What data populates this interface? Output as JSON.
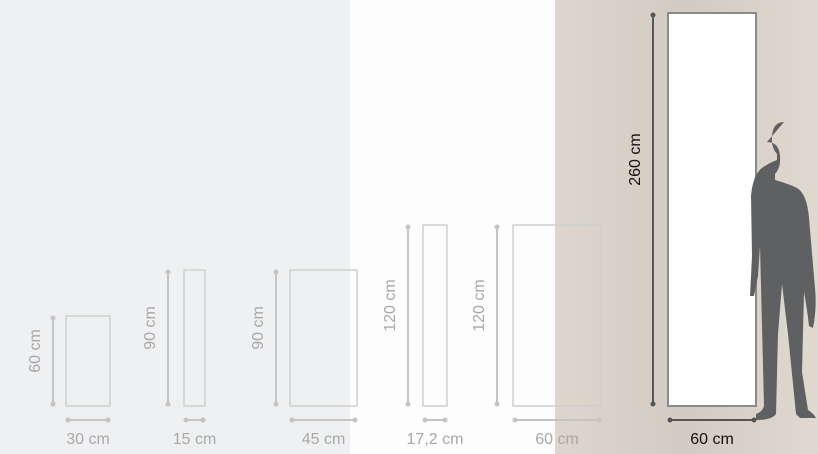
{
  "items": [
    {
      "height": "60 cm",
      "width": "30 cm"
    },
    {
      "height": "90 cm",
      "width": "15 cm"
    },
    {
      "height": "90 cm",
      "width": "45 cm"
    },
    {
      "height": "120 cm",
      "width": "17,2 cm"
    },
    {
      "height": "120 cm",
      "width": "60 cm"
    },
    {
      "height": "260 cm",
      "width": "60 cm"
    }
  ]
}
